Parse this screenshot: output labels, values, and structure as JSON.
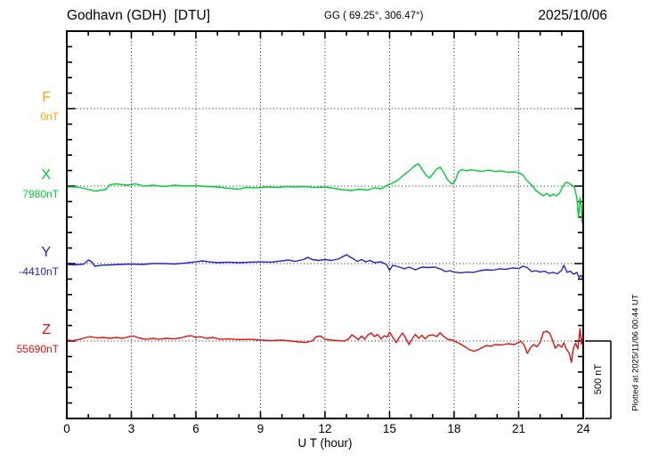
{
  "header": {
    "station": "Godhavn (GDH)  [DTU]",
    "coordinates": "GG ( 69.25°, 306.47°)",
    "date": "2025/10/06"
  },
  "footer_note": "Plotted at 2025/11/06 00:44 UT",
  "chart_data": {
    "type": "line",
    "title": "Godhavn (GDH) [DTU] magnetogram, 2025/10/06",
    "xlabel": "U T (hour)",
    "x_range": [
      0,
      24
    ],
    "x_ticks": [
      0,
      3,
      6,
      9,
      12,
      15,
      18,
      21,
      24
    ],
    "x_minor_step": 1,
    "grid": "dotted vertical lines every 3 hours; dotted horizontal line at each component baseline",
    "scale": {
      "label": "500 nT",
      "nT_per_division": 500
    },
    "series": [
      {
        "name": "F",
        "base_value": "0nT",
        "color": "#FFA500",
        "points": []
      },
      {
        "name": "X",
        "base_value": "7980nT",
        "color": "#00CC33",
        "points": [
          [
            0,
            -6
          ],
          [
            0.5,
            -6
          ],
          [
            0.9,
            -17
          ],
          [
            1.3,
            -32
          ],
          [
            1.8,
            -23
          ],
          [
            2,
            9
          ],
          [
            2.3,
            14
          ],
          [
            2.8,
            6
          ],
          [
            3.2,
            14
          ],
          [
            3.6,
            0
          ],
          [
            4,
            6
          ],
          [
            4.5,
            -3
          ],
          [
            5,
            6
          ],
          [
            5.5,
            0
          ],
          [
            6,
            3
          ],
          [
            6.5,
            -3
          ],
          [
            7,
            -6
          ],
          [
            7.5,
            -14
          ],
          [
            8,
            -20
          ],
          [
            8.3,
            -9
          ],
          [
            8.8,
            -11
          ],
          [
            9.3,
            -6
          ],
          [
            9.8,
            -9
          ],
          [
            10.2,
            -3
          ],
          [
            10.6,
            -6
          ],
          [
            11,
            -3
          ],
          [
            11.5,
            -9
          ],
          [
            12,
            -6
          ],
          [
            12.4,
            -14
          ],
          [
            12.8,
            -23
          ],
          [
            13.2,
            -29
          ],
          [
            13.6,
            -20
          ],
          [
            14,
            -26
          ],
          [
            14.3,
            -11
          ],
          [
            14.6,
            -17
          ],
          [
            14.9,
            6
          ],
          [
            15.1,
            17
          ],
          [
            15.4,
            40
          ],
          [
            15.7,
            75
          ],
          [
            16,
            109
          ],
          [
            16.2,
            135
          ],
          [
            16.35,
            144
          ],
          [
            16.5,
            109
          ],
          [
            16.7,
            69
          ],
          [
            16.85,
            52
          ],
          [
            17,
            75
          ],
          [
            17.2,
            112
          ],
          [
            17.35,
            121
          ],
          [
            17.5,
            92
          ],
          [
            17.7,
            40
          ],
          [
            17.9,
            14
          ],
          [
            18.05,
            34
          ],
          [
            18.2,
            92
          ],
          [
            18.35,
            106
          ],
          [
            18.6,
            98
          ],
          [
            18.8,
            106
          ],
          [
            19,
            100
          ],
          [
            19.3,
            95
          ],
          [
            19.6,
            103
          ],
          [
            19.9,
            95
          ],
          [
            20.2,
            98
          ],
          [
            20.5,
            89
          ],
          [
            20.8,
            92
          ],
          [
            21,
            86
          ],
          [
            21.2,
            72
          ],
          [
            21.35,
            40
          ],
          [
            21.5,
            20
          ],
          [
            21.65,
            0
          ],
          [
            21.8,
            -29
          ],
          [
            22,
            -49
          ],
          [
            22.15,
            -63
          ],
          [
            22.3,
            -46
          ],
          [
            22.45,
            -66
          ],
          [
            22.6,
            -52
          ],
          [
            22.75,
            -63
          ],
          [
            22.9,
            -46
          ],
          [
            23.05,
            -3
          ],
          [
            23.2,
            26
          ],
          [
            23.35,
            17
          ],
          [
            23.5,
            3
          ],
          [
            23.6,
            -11
          ],
          [
            23.7,
            -75
          ],
          [
            23.78,
            -201
          ],
          [
            23.85,
            -75
          ],
          [
            23.9,
            -121
          ],
          [
            23.95,
            -236
          ],
          [
            24,
            -167
          ]
        ]
      },
      {
        "name": "Y",
        "base_value": "-4410nT",
        "color": "#2222CC",
        "points": [
          [
            0,
            -6
          ],
          [
            0.4,
            -9
          ],
          [
            0.8,
            -3
          ],
          [
            1,
            23
          ],
          [
            1.15,
            14
          ],
          [
            1.3,
            -17
          ],
          [
            1.6,
            -11
          ],
          [
            2,
            -9
          ],
          [
            2.5,
            -6
          ],
          [
            3,
            -3
          ],
          [
            3.5,
            -6
          ],
          [
            4,
            0
          ],
          [
            4.5,
            0
          ],
          [
            5,
            -3
          ],
          [
            5.5,
            3
          ],
          [
            6,
            11
          ],
          [
            6.3,
            17
          ],
          [
            6.6,
            11
          ],
          [
            7,
            6
          ],
          [
            7.5,
            9
          ],
          [
            8,
            6
          ],
          [
            8.5,
            9
          ],
          [
            9,
            11
          ],
          [
            9.5,
            9
          ],
          [
            10,
            17
          ],
          [
            10.3,
            23
          ],
          [
            10.6,
            14
          ],
          [
            11,
            26
          ],
          [
            11.2,
            40
          ],
          [
            11.4,
            26
          ],
          [
            11.7,
            20
          ],
          [
            12,
            26
          ],
          [
            12.3,
            20
          ],
          [
            12.6,
            29
          ],
          [
            12.85,
            46
          ],
          [
            13,
            57
          ],
          [
            13.15,
            43
          ],
          [
            13.3,
            32
          ],
          [
            13.5,
            14
          ],
          [
            13.7,
            26
          ],
          [
            13.9,
            11
          ],
          [
            14.1,
            20
          ],
          [
            14.3,
            6
          ],
          [
            14.6,
            11
          ],
          [
            14.85,
            -6
          ],
          [
            15,
            -43
          ],
          [
            15.15,
            -11
          ],
          [
            15.4,
            -20
          ],
          [
            15.7,
            -34
          ],
          [
            15.9,
            -23
          ],
          [
            16.2,
            -40
          ],
          [
            16.5,
            -23
          ],
          [
            16.8,
            -26
          ],
          [
            17.1,
            -23
          ],
          [
            17.4,
            -37
          ],
          [
            17.6,
            -52
          ],
          [
            17.8,
            -46
          ],
          [
            18,
            -55
          ],
          [
            18.3,
            -60
          ],
          [
            18.6,
            -55
          ],
          [
            18.9,
            -57
          ],
          [
            19.2,
            -46
          ],
          [
            19.5,
            -40
          ],
          [
            19.8,
            -43
          ],
          [
            20.1,
            -34
          ],
          [
            20.4,
            -37
          ],
          [
            20.7,
            -29
          ],
          [
            21,
            -32
          ],
          [
            21.2,
            -17
          ],
          [
            21.4,
            -26
          ],
          [
            21.6,
            -52
          ],
          [
            21.8,
            -46
          ],
          [
            22,
            -55
          ],
          [
            22.2,
            -49
          ],
          [
            22.4,
            -63
          ],
          [
            22.6,
            -57
          ],
          [
            22.8,
            -66
          ],
          [
            23,
            -43
          ],
          [
            23.1,
            -11
          ],
          [
            23.25,
            -57
          ],
          [
            23.4,
            -49
          ],
          [
            23.55,
            -69
          ],
          [
            23.7,
            -57
          ],
          [
            23.8,
            -89
          ],
          [
            23.9,
            -75
          ],
          [
            24,
            -98
          ]
        ]
      },
      {
        "name": "Z",
        "base_value": "55690nT",
        "color": "#E01010",
        "points": [
          [
            0,
            6
          ],
          [
            0.3,
            3
          ],
          [
            0.6,
            11
          ],
          [
            0.9,
            23
          ],
          [
            1.1,
            29
          ],
          [
            1.4,
            20
          ],
          [
            1.7,
            23
          ],
          [
            2,
            17
          ],
          [
            2.3,
            23
          ],
          [
            2.6,
            17
          ],
          [
            2.9,
            29
          ],
          [
            3.1,
            32
          ],
          [
            3.4,
            17
          ],
          [
            3.7,
            11
          ],
          [
            4,
            17
          ],
          [
            4.3,
            11
          ],
          [
            4.6,
            17
          ],
          [
            5,
            14
          ],
          [
            5.3,
            20
          ],
          [
            5.6,
            32
          ],
          [
            5.8,
            34
          ],
          [
            6,
            23
          ],
          [
            6.2,
            29
          ],
          [
            6.5,
            17
          ],
          [
            6.8,
            23
          ],
          [
            7.1,
            11
          ],
          [
            7.5,
            14
          ],
          [
            8,
            9
          ],
          [
            8.5,
            11
          ],
          [
            9,
            6
          ],
          [
            9.5,
            3
          ],
          [
            10,
            6
          ],
          [
            10.4,
            0
          ],
          [
            10.8,
            -6
          ],
          [
            11.1,
            -9
          ],
          [
            11.4,
            0
          ],
          [
            11.6,
            29
          ],
          [
            11.8,
            32
          ],
          [
            12,
            11
          ],
          [
            12.3,
            6
          ],
          [
            12.6,
            3
          ],
          [
            12.9,
            0
          ],
          [
            13.1,
            14
          ],
          [
            13.25,
            40
          ],
          [
            13.4,
            26
          ],
          [
            13.55,
            9
          ],
          [
            13.7,
            32
          ],
          [
            13.85,
            11
          ],
          [
            14,
            40
          ],
          [
            14.15,
            52
          ],
          [
            14.3,
            29
          ],
          [
            14.45,
            43
          ],
          [
            14.6,
            14
          ],
          [
            14.75,
            34
          ],
          [
            14.9,
            26
          ],
          [
            15,
            57
          ],
          [
            15.15,
            26
          ],
          [
            15.3,
            -11
          ],
          [
            15.45,
            23
          ],
          [
            15.6,
            52
          ],
          [
            15.75,
            20
          ],
          [
            15.9,
            -23
          ],
          [
            16.05,
            14
          ],
          [
            16.2,
            43
          ],
          [
            16.35,
            17
          ],
          [
            16.5,
            37
          ],
          [
            16.65,
            14
          ],
          [
            16.8,
            34
          ],
          [
            17,
            40
          ],
          [
            17.2,
            29
          ],
          [
            17.35,
            54
          ],
          [
            17.5,
            32
          ],
          [
            17.7,
            11
          ],
          [
            17.9,
            6
          ],
          [
            18.1,
            -6
          ],
          [
            18.3,
            -20
          ],
          [
            18.5,
            -37
          ],
          [
            18.7,
            -55
          ],
          [
            18.9,
            -66
          ],
          [
            19.1,
            -57
          ],
          [
            19.3,
            -43
          ],
          [
            19.5,
            -29
          ],
          [
            19.7,
            -34
          ],
          [
            19.9,
            -23
          ],
          [
            20.2,
            -26
          ],
          [
            20.5,
            -17
          ],
          [
            20.8,
            -23
          ],
          [
            21,
            -9
          ],
          [
            21.1,
            0
          ],
          [
            21.25,
            -26
          ],
          [
            21.4,
            -80
          ],
          [
            21.55,
            -43
          ],
          [
            21.7,
            -23
          ],
          [
            21.85,
            -37
          ],
          [
            22,
            -9
          ],
          [
            22.15,
            57
          ],
          [
            22.3,
            63
          ],
          [
            22.45,
            49
          ],
          [
            22.55,
            14
          ],
          [
            22.7,
            -46
          ],
          [
            22.85,
            -23
          ],
          [
            23,
            -40
          ],
          [
            23.1,
            -11
          ],
          [
            23.2,
            -49
          ],
          [
            23.35,
            -78
          ],
          [
            23.45,
            -138
          ],
          [
            23.55,
            -43
          ],
          [
            23.65,
            -14
          ],
          [
            23.75,
            -52
          ],
          [
            23.85,
            80
          ],
          [
            23.92,
            -20
          ],
          [
            24,
            46
          ]
        ]
      }
    ]
  }
}
